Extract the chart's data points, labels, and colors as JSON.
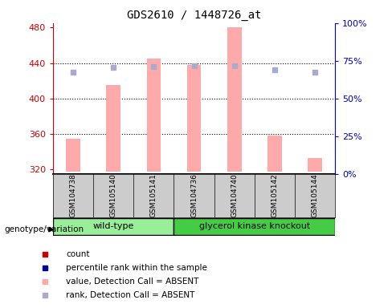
{
  "title": "GDS2610 / 1448726_at",
  "samples": [
    "GSM104738",
    "GSM105140",
    "GSM105141",
    "GSM104736",
    "GSM104740",
    "GSM105142",
    "GSM105144"
  ],
  "bar_values": [
    355,
    415,
    445,
    438,
    480,
    358,
    333
  ],
  "rank_values": [
    430,
    435,
    436,
    437,
    437,
    432,
    430
  ],
  "y_min": 315,
  "y_max": 485,
  "y_ticks": [
    320,
    360,
    400,
    440,
    480
  ],
  "right_ticks": [
    0,
    25,
    50,
    75,
    100
  ],
  "bar_color_absent": "#ffaaaa",
  "rank_color_absent": "#aaaacc",
  "bar_color_present": "#cc0000",
  "rank_color_present": "#000099",
  "left_axis_color": "#cc0000",
  "right_axis_color": "#0000cc",
  "wild_type_color": "#99ee99",
  "knockout_color": "#44cc44",
  "sample_box_color": "#cccccc",
  "bar_width": 0.35,
  "base_value": 318,
  "wild_type_indices": [
    0,
    1,
    2
  ],
  "knockout_indices": [
    3,
    4,
    5,
    6
  ],
  "legend_items": [
    {
      "color": "#cc0000",
      "label": "count"
    },
    {
      "color": "#000099",
      "label": "percentile rank within the sample"
    },
    {
      "color": "#ffaaaa",
      "label": "value, Detection Call = ABSENT"
    },
    {
      "color": "#aaaacc",
      "label": "rank, Detection Call = ABSENT"
    }
  ]
}
